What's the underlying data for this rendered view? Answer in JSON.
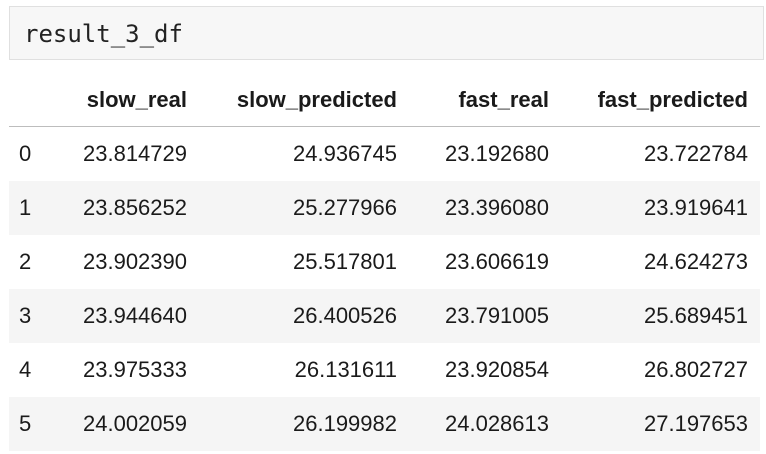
{
  "code_cell": {
    "source": "result_3_df"
  },
  "table": {
    "columns": [
      "",
      "slow_real",
      "slow_predicted",
      "fast_real",
      "fast_predicted"
    ],
    "rows": [
      {
        "index": "0",
        "slow_real": "23.814729",
        "slow_predicted": "24.936745",
        "fast_real": "23.192680",
        "fast_predicted": "23.722784"
      },
      {
        "index": "1",
        "slow_real": "23.856252",
        "slow_predicted": "25.277966",
        "fast_real": "23.396080",
        "fast_predicted": "23.919641"
      },
      {
        "index": "2",
        "slow_real": "23.902390",
        "slow_predicted": "25.517801",
        "fast_real": "23.606619",
        "fast_predicted": "24.624273"
      },
      {
        "index": "3",
        "slow_real": "23.944640",
        "slow_predicted": "26.400526",
        "fast_real": "23.791005",
        "fast_predicted": "25.689451"
      },
      {
        "index": "4",
        "slow_real": "23.975333",
        "slow_predicted": "26.131611",
        "fast_real": "23.920854",
        "fast_predicted": "26.802727"
      },
      {
        "index": "5",
        "slow_real": "24.002059",
        "slow_predicted": "26.199982",
        "fast_real": "24.028613",
        "fast_predicted": "27.197653"
      }
    ]
  },
  "colors": {
    "cell_background": "#f7f7f7",
    "row_stripe": "#f5f5f5",
    "header_rule": "#bdbdbd"
  }
}
